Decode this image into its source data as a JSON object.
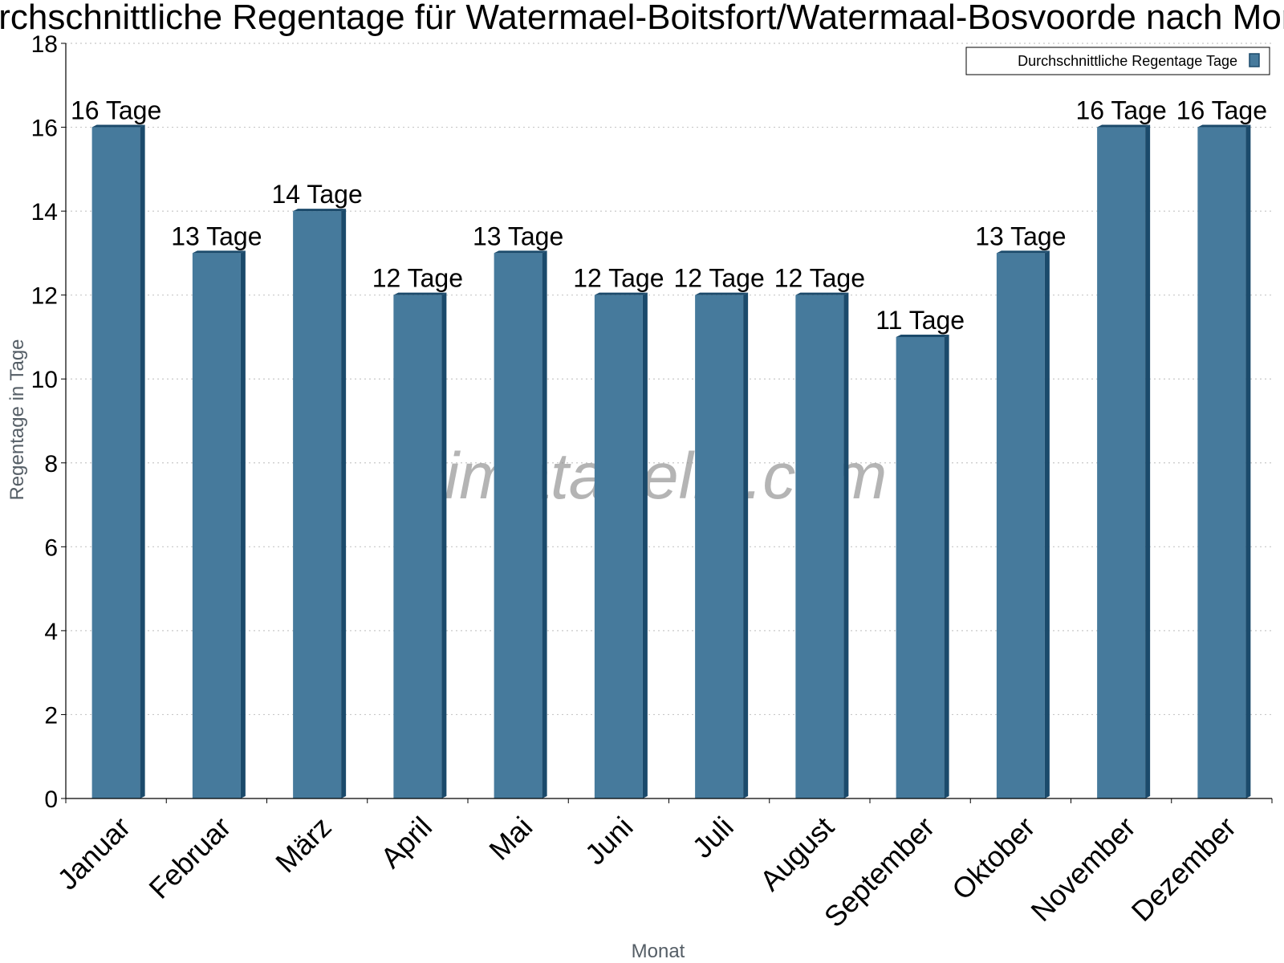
{
  "chart_data": {
    "type": "bar",
    "title": "Durchschnittliche Regentage für Watermael-Boitsfort/Watermaal-Bosvoorde nach Monat",
    "xlabel": "Monat",
    "ylabel": "Regentage in Tage",
    "ylim": [
      0,
      18
    ],
    "yticks": [
      0,
      2,
      4,
      6,
      8,
      10,
      12,
      14,
      16,
      18
    ],
    "grid": true,
    "legend_position": "top-right",
    "categories": [
      "Januar",
      "Februar",
      "März",
      "April",
      "Mai",
      "Juni",
      "Juli",
      "August",
      "September",
      "Oktober",
      "November",
      "Dezember"
    ],
    "series": [
      {
        "name": "Durchschnittliche Regentage Tage",
        "values": [
          16,
          13,
          14,
          12,
          13,
          12,
          12,
          12,
          11,
          13,
          16,
          16
        ],
        "data_labels": [
          "16 Tage",
          "13 Tage",
          "14 Tage",
          "12 Tage",
          "13 Tage",
          "12 Tage",
          "12 Tage",
          "12 Tage",
          "11 Tage",
          "13 Tage",
          "16 Tage",
          "16 Tage"
        ],
        "color": "#467a9c",
        "edge_color": "#1b4a6b"
      }
    ],
    "watermark": "klimatabelle.com"
  }
}
